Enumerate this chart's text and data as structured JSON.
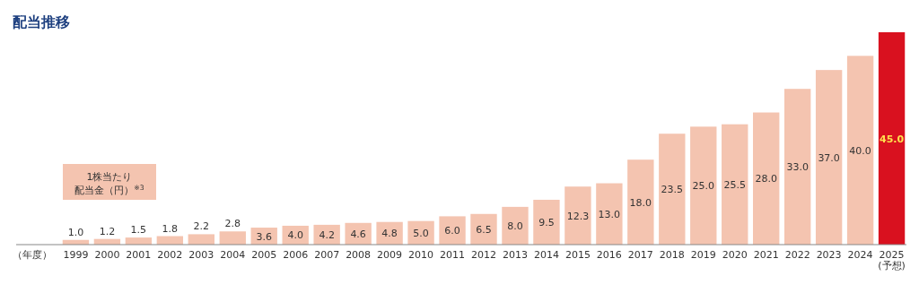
{
  "chart_data": {
    "type": "bar",
    "title": "配当推移",
    "xlabel": "（年度）",
    "categories": [
      "1999",
      "2000",
      "2001",
      "2002",
      "2003",
      "2004",
      "2005",
      "2006",
      "2007",
      "2008",
      "2009",
      "2010",
      "2011",
      "2012",
      "2013",
      "2014",
      "2015",
      "2016",
      "2017",
      "2018",
      "2019",
      "2020",
      "2021",
      "2022",
      "2023",
      "2024",
      "2025\n(予想)"
    ],
    "series": [
      {
        "name": "1株当たり配当金（円）$^{※3}$",
        "color": "#f4c4b0",
        "colors": [
          "#f4c4b0",
          "#f4c4b0",
          "#f4c4b0",
          "#f4c4b0",
          "#f4c4b0",
          "#f4c4b0",
          "#f4c4b0",
          "#f4c4b0",
          "#f4c4b0",
          "#f4c4b0",
          "#f4c4b0",
          "#f4c4b0",
          "#f4c4b0",
          "#f4c4b0",
          "#f4c4b0",
          "#f4c4b0",
          "#f4c4b0",
          "#f4c4b0",
          "#f4c4b0",
          "#f4c4b0",
          "#f4c4b0",
          "#f4c4b0",
          "#f4c4b0",
          "#f4c4b0",
          "#f4c4b0",
          "#f4c4b0",
          "#d9111f"
        ],
        "values": [
          1.0,
          1.2,
          1.5,
          1.8,
          2.2,
          2.8,
          3.6,
          4.0,
          4.2,
          4.6,
          4.8,
          5.0,
          6.0,
          6.5,
          8.0,
          9.5,
          12.3,
          13.0,
          18.0,
          23.5,
          25.0,
          25.5,
          28.0,
          33.0,
          37.0,
          40.0,
          45.0
        ],
        "value_labels": [
          "1.0",
          "1.2",
          "1.5",
          "1.8",
          "2.2",
          "2.8",
          "3.6",
          "4.0",
          "4.2",
          "4.6",
          "4.8",
          "5.0",
          "6.0",
          "6.5",
          "8.0",
          "9.5",
          "12.3",
          "13.0",
          "18.0",
          "23.5",
          "25.0",
          "25.5",
          "28.0",
          "33.0",
          "37.0",
          "40.0",
          "45.0"
        ]
      }
    ],
    "legend": "left"
  }
}
